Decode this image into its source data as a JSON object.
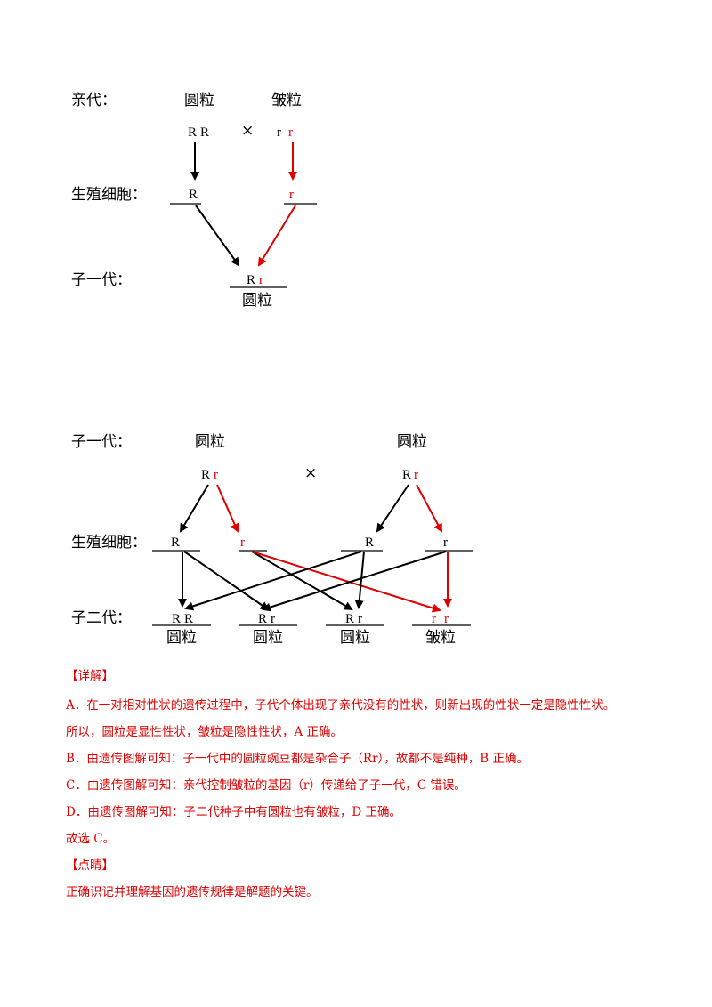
{
  "diagram1": {
    "parent_label": "亲代：",
    "parent_left_pheno": "圆粒",
    "parent_right_pheno": "皱粒",
    "parent_left_geno_1": "R",
    "parent_left_geno_2": "R",
    "cross_symbol": "×",
    "parent_right_geno_1": "r",
    "parent_right_geno_2": "r",
    "gamete_label": "生殖细胞：",
    "gamete_left": "R",
    "gamete_right": "r",
    "f1_label": "子一代：",
    "f1_geno_1": "R",
    "f1_geno_2": "r",
    "f1_pheno": "圆粒"
  },
  "diagram2": {
    "f1_label": "子一代：",
    "left_pheno": "圆粒",
    "right_pheno": "圆粒",
    "left_geno_1": "R",
    "left_geno_2": "r",
    "cross_symbol": "×",
    "right_geno_1": "R",
    "right_geno_2": "r",
    "gamete_label": "生殖细胞：",
    "gametes": [
      "R",
      "r",
      "R",
      "r"
    ],
    "f2_label": "子二代：",
    "offspring": [
      {
        "g1": "R",
        "g2": "R",
        "pheno": "圆粒"
      },
      {
        "g1": "R",
        "g2": "r",
        "pheno": "圆粒"
      },
      {
        "g1": "R",
        "g2": "r",
        "pheno": "圆粒"
      },
      {
        "g1": "r",
        "g2": "r",
        "pheno": "皱粒"
      }
    ]
  },
  "explanation": {
    "heading": "【详解】",
    "lines": [
      "A．在一对相对性状的遗传过程中，子代个体出现了亲代没有的性状，则新出现的性状一定是隐性性状。",
      "所以，圆粒是显性性状，皱粒是隐性性状，A 正确。",
      "B．由遗传图解可知：子一代中的圆粒豌豆都是杂合子（Rr），故都不是纯种，B 正确。",
      "C．由遗传图解可知：亲代控制皱粒的基因（r）传递给了子一代，C 错误。",
      "D．由遗传图解可知：子二代种子中有圆粒也有皱粒，D 正确。"
    ],
    "conclusion": "故选 C。",
    "tip_heading": "【点睛】",
    "tip": "正确识记并理解基因的遗传规律是解题的关键。"
  },
  "colors": {
    "accent_red": "#e00000"
  }
}
